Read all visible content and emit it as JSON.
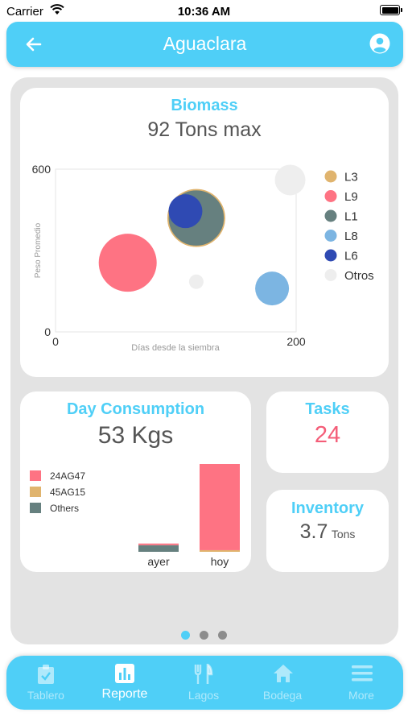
{
  "status": {
    "carrier": "Carrier",
    "time": "10:36 AM"
  },
  "header": {
    "title": "Aguaclara",
    "back_icon": "arrow-left-icon",
    "profile_icon": "user-circle-icon"
  },
  "biomass": {
    "title": "Biomass",
    "value": "92 Tons max",
    "chart_data": {
      "type": "scatter",
      "xlabel": "Días desde la siembra",
      "ylabel": "Peso Promedio",
      "xlim": [
        0,
        200
      ],
      "ylim": [
        0,
        600
      ],
      "x_ticks": [
        "0",
        "200"
      ],
      "y_ticks": [
        "0",
        "600"
      ],
      "grid": false,
      "legend_position": "right",
      "series": [
        {
          "name": "L3",
          "color": "#e0b46e",
          "points": [
            {
              "x": 117,
              "y": 420,
              "size": 36
            }
          ]
        },
        {
          "name": "L9",
          "color": "#fe7383",
          "points": [
            {
              "x": 60,
              "y": 255,
              "size": 36
            }
          ]
        },
        {
          "name": "L1",
          "color": "#66807f",
          "points": [
            {
              "x": 117,
              "y": 420,
              "size": 35
            }
          ]
        },
        {
          "name": "L8",
          "color": "#7cb5e2",
          "points": [
            {
              "x": 180,
              "y": 160,
              "size": 21
            }
          ]
        },
        {
          "name": "L6",
          "color": "#2f4ab3",
          "points": [
            {
              "x": 108,
              "y": 445,
              "size": 21
            }
          ]
        },
        {
          "name": "Otros",
          "color": "#eeeeee",
          "points": [
            {
              "x": 195,
              "y": 560,
              "size": 19
            },
            {
              "x": 117,
              "y": 185,
              "size": 9
            }
          ]
        }
      ]
    }
  },
  "day_consumption": {
    "title": "Day Consumption",
    "value": "53 Kgs",
    "chart_data": {
      "type": "bar",
      "stacked": true,
      "categories": [
        "ayer",
        "hoy"
      ],
      "ylim": [
        0,
        53
      ],
      "legend_position": "top-left",
      "series": [
        {
          "name": "Others",
          "color": "#66807f",
          "values": [
            4,
            0
          ]
        },
        {
          "name": "45AG15",
          "color": "#e0b46e",
          "values": [
            0,
            1
          ]
        },
        {
          "name": "24AG47",
          "color": "#fe7383",
          "values": [
            1,
            52
          ]
        }
      ]
    }
  },
  "tasks": {
    "title": "Tasks",
    "value": "24"
  },
  "inventory": {
    "title": "Inventory",
    "value": "3.7",
    "unit": "Tons"
  },
  "pager": {
    "count": 3,
    "active": 0
  },
  "tabs": [
    {
      "label": "Tablero",
      "icon": "clipboard-check-icon"
    },
    {
      "label": "Reporte",
      "icon": "bar-chart-icon"
    },
    {
      "label": "Lagos",
      "icon": "utensils-icon"
    },
    {
      "label": "Bodega",
      "icon": "home-icon"
    },
    {
      "label": "More",
      "icon": "menu-icon"
    }
  ],
  "active_tab": 1,
  "colors": {
    "accent": "#4fcff7",
    "panel": "#e3e3e3",
    "tasks_value": "#f45d78"
  }
}
